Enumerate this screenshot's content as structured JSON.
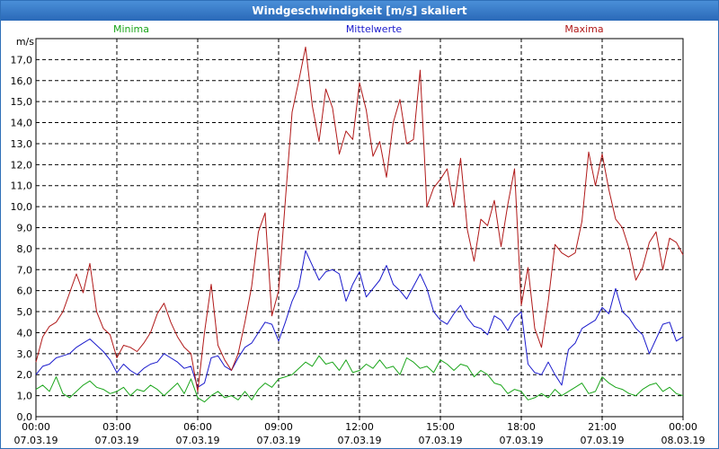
{
  "window": {
    "title": "Windgeschwindigkeit [m/s] skaliert"
  },
  "chart_data": {
    "type": "line",
    "title": "Windgeschwindigkeit [m/s] skaliert",
    "ylabel": "m/s",
    "ylim": [
      0,
      18
    ],
    "y_ticks": [
      "0,0",
      "1,0",
      "2,0",
      "3,0",
      "4,0",
      "5,0",
      "6,0",
      "7,0",
      "8,0",
      "9,0",
      "10,0",
      "11,0",
      "12,0",
      "13,0",
      "14,0",
      "15,0",
      "16,0",
      "17,0"
    ],
    "x_range_hours": [
      0,
      24
    ],
    "x_ticks": [
      {
        "hour": 0,
        "time": "00:00",
        "date": "07.03.19"
      },
      {
        "hour": 3,
        "time": "03:00",
        "date": "07.03.19"
      },
      {
        "hour": 6,
        "time": "06:00",
        "date": "07.03.19"
      },
      {
        "hour": 9,
        "time": "09:00",
        "date": "07.03.19"
      },
      {
        "hour": 12,
        "time": "12:00",
        "date": "07.03.19"
      },
      {
        "hour": 15,
        "time": "15:00",
        "date": "07.03.19"
      },
      {
        "hour": 18,
        "time": "18:00",
        "date": "07.03.19"
      },
      {
        "hour": 21,
        "time": "21:00",
        "date": "07.03.19"
      },
      {
        "hour": 24,
        "time": "00:00",
        "date": "08.03.19"
      }
    ],
    "grid": true,
    "legend_placement": "top",
    "series": [
      {
        "name": "Minima",
        "color": "#1aa51a",
        "x": [
          0,
          0.25,
          0.5,
          0.75,
          1,
          1.25,
          1.5,
          1.75,
          2,
          2.25,
          2.5,
          2.75,
          3,
          3.25,
          3.5,
          3.75,
          4,
          4.25,
          4.5,
          4.75,
          5,
          5.25,
          5.5,
          5.75,
          6,
          6.25,
          6.5,
          6.75,
          7,
          7.25,
          7.5,
          7.75,
          8,
          8.25,
          8.5,
          8.75,
          9,
          9.25,
          9.5,
          9.75,
          10,
          10.25,
          10.5,
          10.75,
          11,
          11.25,
          11.5,
          11.75,
          12,
          12.25,
          12.5,
          12.75,
          13,
          13.25,
          13.5,
          13.75,
          14,
          14.25,
          14.5,
          14.75,
          15,
          15.25,
          15.5,
          15.75,
          16,
          16.25,
          16.5,
          16.75,
          17,
          17.25,
          17.5,
          17.75,
          18,
          18.25,
          18.5,
          18.75,
          19,
          19.25,
          19.5,
          19.75,
          20,
          20.25,
          20.5,
          20.75,
          21,
          21.25,
          21.5,
          21.75,
          22,
          22.25,
          22.5,
          22.75,
          23,
          23.25,
          23.5,
          23.75,
          24
        ],
        "y": [
          1.3,
          1.5,
          1.2,
          1.9,
          1.1,
          0.9,
          1.2,
          1.5,
          1.7,
          1.4,
          1.3,
          1.1,
          1.2,
          1.4,
          1.0,
          1.3,
          1.2,
          1.5,
          1.3,
          1.0,
          1.3,
          1.6,
          1.1,
          1.8,
          0.9,
          0.7,
          1.0,
          1.2,
          0.9,
          1.0,
          0.8,
          1.2,
          0.8,
          1.3,
          1.6,
          1.4,
          1.8,
          1.9,
          2.0,
          2.3,
          2.6,
          2.4,
          2.9,
          2.5,
          2.6,
          2.2,
          2.7,
          2.1,
          2.2,
          2.5,
          2.3,
          2.7,
          2.3,
          2.4,
          2.0,
          2.8,
          2.6,
          2.3,
          2.4,
          2.1,
          2.7,
          2.5,
          2.2,
          2.5,
          2.4,
          1.9,
          2.2,
          2.0,
          1.6,
          1.5,
          1.1,
          1.3,
          1.2,
          0.8,
          0.9,
          1.1,
          0.9,
          1.3,
          1.0,
          1.2,
          1.4,
          1.6,
          1.1,
          1.2,
          1.9,
          1.6,
          1.4,
          1.3,
          1.1,
          1.0,
          1.3,
          1.5,
          1.6,
          1.2,
          1.4,
          1.1,
          1.0
        ]
      },
      {
        "name": "Mittelwerte",
        "color": "#1a1acc",
        "x": [
          0,
          0.25,
          0.5,
          0.75,
          1,
          1.25,
          1.5,
          1.75,
          2,
          2.25,
          2.5,
          2.75,
          3,
          3.25,
          3.5,
          3.75,
          4,
          4.25,
          4.5,
          4.75,
          5,
          5.25,
          5.5,
          5.75,
          6,
          6.25,
          6.5,
          6.75,
          7,
          7.25,
          7.5,
          7.75,
          8,
          8.25,
          8.5,
          8.75,
          9,
          9.25,
          9.5,
          9.75,
          10,
          10.25,
          10.5,
          10.75,
          11,
          11.25,
          11.5,
          11.75,
          12,
          12.25,
          12.5,
          12.75,
          13,
          13.25,
          13.5,
          13.75,
          14,
          14.25,
          14.5,
          14.75,
          15,
          15.25,
          15.5,
          15.75,
          16,
          16.25,
          16.5,
          16.75,
          17,
          17.25,
          17.5,
          17.75,
          18,
          18.25,
          18.5,
          18.75,
          19,
          19.25,
          19.5,
          19.75,
          20,
          20.25,
          20.5,
          20.75,
          21,
          21.25,
          21.5,
          21.75,
          22,
          22.25,
          22.5,
          22.75,
          23,
          23.25,
          23.5,
          23.75,
          24
        ],
        "y": [
          2.0,
          2.4,
          2.5,
          2.8,
          2.9,
          3.0,
          3.3,
          3.5,
          3.7,
          3.4,
          3.1,
          2.7,
          2.1,
          2.5,
          2.2,
          2.0,
          2.3,
          2.5,
          2.6,
          3.0,
          2.8,
          2.6,
          2.3,
          2.4,
          1.4,
          1.6,
          2.8,
          2.9,
          2.4,
          2.2,
          2.8,
          3.3,
          3.5,
          4.0,
          4.5,
          4.4,
          3.6,
          4.5,
          5.5,
          6.2,
          7.9,
          7.2,
          6.5,
          6.9,
          7.0,
          6.8,
          5.5,
          6.3,
          6.9,
          5.7,
          6.1,
          6.5,
          7.2,
          6.3,
          6.0,
          5.6,
          6.2,
          6.8,
          6.1,
          5.0,
          4.6,
          4.4,
          4.9,
          5.3,
          4.7,
          4.3,
          4.2,
          3.9,
          4.8,
          4.6,
          4.1,
          4.7,
          5.0,
          2.5,
          2.1,
          2.0,
          2.6,
          2.0,
          1.5,
          3.2,
          3.5,
          4.2,
          4.4,
          4.6,
          5.2,
          4.9,
          6.1,
          5.0,
          4.7,
          4.2,
          3.9,
          3.0,
          3.7,
          4.4,
          4.5,
          3.6,
          3.8
        ]
      },
      {
        "name": "Maxima",
        "color": "#b01818",
        "x": [
          0,
          0.25,
          0.5,
          0.75,
          1,
          1.25,
          1.5,
          1.75,
          2,
          2.25,
          2.5,
          2.75,
          3,
          3.25,
          3.5,
          3.75,
          4,
          4.25,
          4.5,
          4.75,
          5,
          5.25,
          5.5,
          5.75,
          6,
          6.25,
          6.5,
          6.75,
          7,
          7.25,
          7.5,
          7.75,
          8,
          8.25,
          8.5,
          8.75,
          9,
          9.25,
          9.5,
          9.75,
          10,
          10.25,
          10.5,
          10.75,
          11,
          11.25,
          11.5,
          11.75,
          12,
          12.25,
          12.5,
          12.75,
          13,
          13.25,
          13.5,
          13.75,
          14,
          14.25,
          14.5,
          14.75,
          15,
          15.25,
          15.5,
          15.75,
          16,
          16.25,
          16.5,
          16.75,
          17,
          17.25,
          17.5,
          17.75,
          18,
          18.25,
          18.5,
          18.75,
          19,
          19.25,
          19.5,
          19.75,
          20,
          20.25,
          20.5,
          20.75,
          21,
          21.25,
          21.5,
          21.75,
          22,
          22.25,
          22.5,
          22.75,
          23,
          23.25,
          23.5,
          23.75,
          24
        ],
        "y": [
          2.6,
          3.8,
          4.3,
          4.5,
          5.0,
          5.9,
          6.8,
          5.9,
          7.3,
          5.0,
          4.2,
          3.9,
          2.8,
          3.4,
          3.3,
          3.1,
          3.5,
          4.0,
          4.9,
          5.4,
          4.5,
          3.8,
          3.3,
          3.0,
          1.2,
          4.0,
          6.3,
          3.4,
          2.7,
          2.2,
          3.0,
          4.5,
          6.2,
          8.8,
          9.7,
          4.8,
          6.0,
          10.3,
          14.5,
          16.0,
          17.6,
          14.8,
          13.1,
          15.6,
          14.7,
          12.5,
          13.6,
          13.2,
          15.9,
          14.6,
          12.4,
          13.1,
          11.4,
          14.0,
          15.1,
          13.0,
          13.2,
          16.5,
          10.0,
          10.9,
          11.3,
          11.8,
          10.0,
          12.3,
          8.9,
          7.4,
          9.4,
          9.1,
          10.3,
          8.1,
          10.1,
          11.8,
          5.3,
          7.1,
          4.2,
          3.3,
          5.5,
          8.2,
          7.8,
          7.6,
          7.8,
          9.3,
          12.6,
          11.0,
          12.5,
          10.8,
          9.4,
          9.0,
          8.0,
          6.5,
          7.1,
          8.3,
          8.8,
          7.0,
          8.5,
          8.3,
          7.7
        ]
      }
    ]
  }
}
